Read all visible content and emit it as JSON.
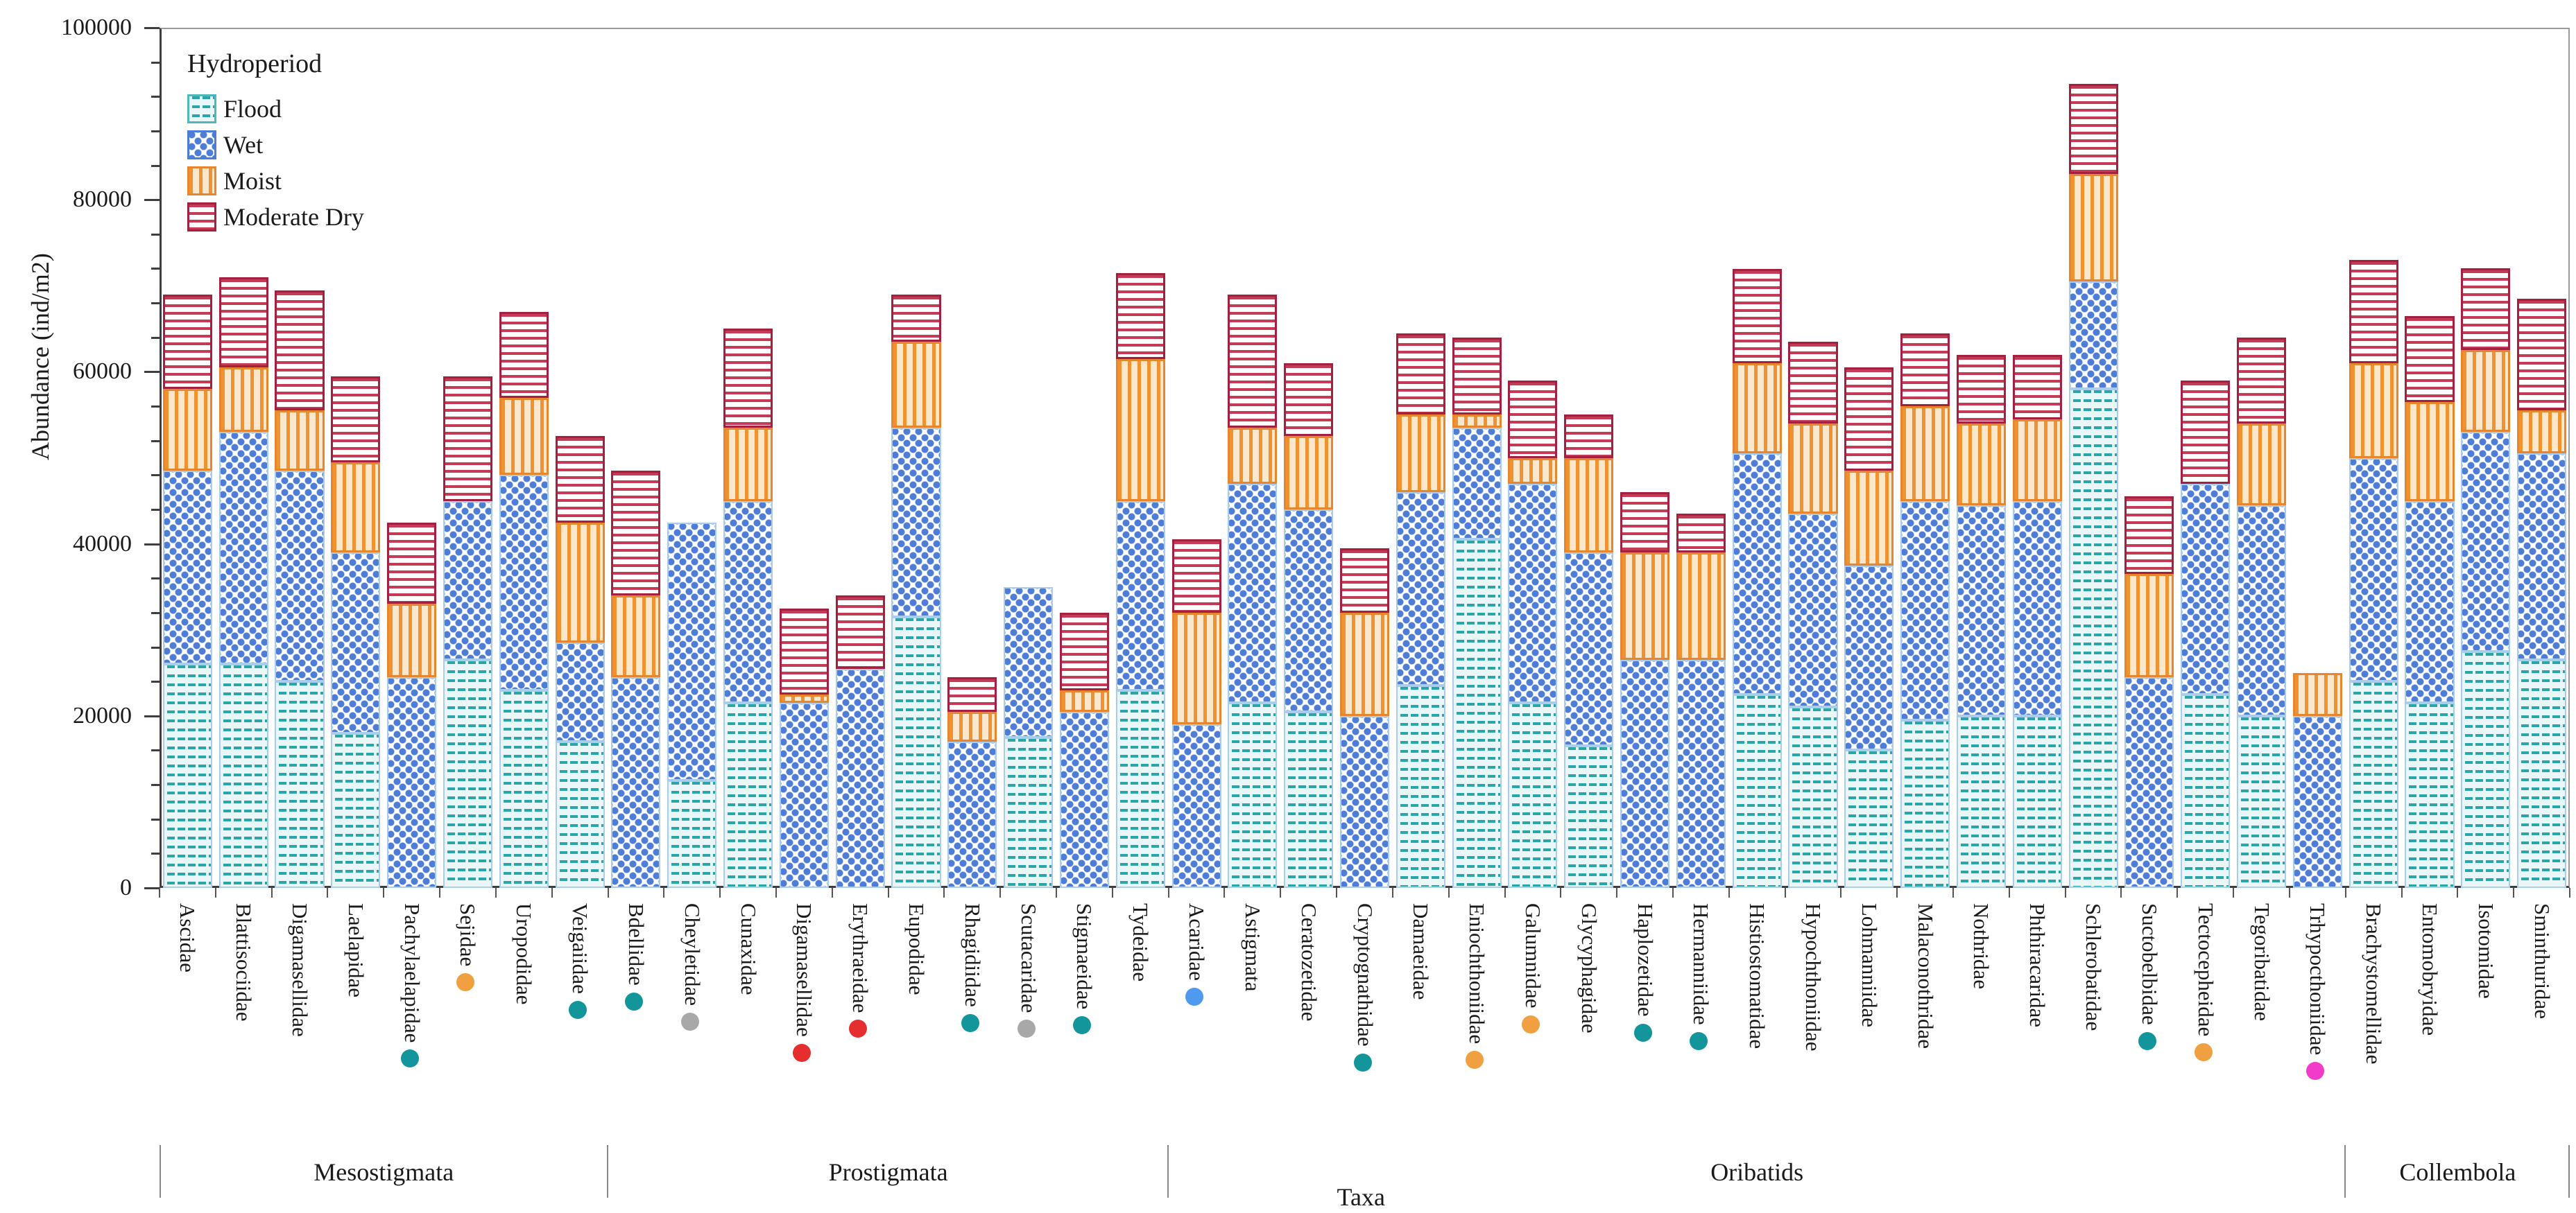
{
  "chart_data": {
    "type": "bar",
    "stacked": true,
    "ylabel": "Abundance (ind/m2)",
    "xlabel": "Taxa",
    "ylim": [
      0,
      100000
    ],
    "y_ticks": [
      "0",
      "20000",
      "40000",
      "60000",
      "80000",
      "100000"
    ],
    "y_major_step": 20000,
    "y_minor_step": 4000,
    "grid": false,
    "legend": {
      "title": "Hydroperiod",
      "position": "top-left-inside",
      "entries": [
        {
          "label": "Flood",
          "key": "flood",
          "color": "#2AA5A8",
          "pattern": "teal-horizontal-dashes"
        },
        {
          "label": "Wet",
          "key": "wet",
          "color": "#4E7DD8",
          "pattern": "blue-dots"
        },
        {
          "label": "Moist",
          "key": "moist",
          "color": "#F0922F",
          "pattern": "orange-vertical-stripes"
        },
        {
          "label": "Moderate Dry",
          "key": "dry",
          "color": "#C53B55",
          "pattern": "red-horizontal-stripes"
        }
      ]
    },
    "dot_colors": {
      "teal": "#12969B",
      "orange": "#F0A040",
      "gray": "#A8A8A8",
      "red": "#E62E2E",
      "blue": "#4E9AF0",
      "magenta": "#F23BC9"
    },
    "groups": [
      {
        "label": "Mesostigmata",
        "taxa_count": 8
      },
      {
        "label": "Prostigmata",
        "taxa_count": 10
      },
      {
        "label": "Oribatids",
        "taxa_count": 21
      },
      {
        "label": "Collembola",
        "taxa_count": 4
      }
    ],
    "series_order": [
      "flood",
      "wet",
      "moist",
      "dry"
    ],
    "bars": [
      {
        "taxon": "Ascidae",
        "group": "Mesostigmata",
        "dot": null,
        "flood": 26000,
        "wet": 22500,
        "moist": 9500,
        "dry": 11000
      },
      {
        "taxon": "Blattisociidae",
        "group": "Mesostigmata",
        "dot": null,
        "flood": 26000,
        "wet": 27000,
        "moist": 7500,
        "dry": 10500
      },
      {
        "taxon": "Digamasellidae",
        "group": "Mesostigmata",
        "dot": null,
        "flood": 24000,
        "wet": 24500,
        "moist": 7000,
        "dry": 14000
      },
      {
        "taxon": "Laelapidae",
        "group": "Mesostigmata",
        "dot": null,
        "flood": 18000,
        "wet": 21000,
        "moist": 10500,
        "dry": 10000
      },
      {
        "taxon": "Pachylaelapidae",
        "group": "Mesostigmata",
        "dot": "teal",
        "flood": 0,
        "wet": 24500,
        "moist": 8500,
        "dry": 9500
      },
      {
        "taxon": "Sejidae",
        "group": "Mesostigmata",
        "dot": "orange",
        "flood": 26500,
        "wet": 18500,
        "moist": 0,
        "dry": 14500
      },
      {
        "taxon": "Uropodidae",
        "group": "Mesostigmata",
        "dot": null,
        "flood": 23000,
        "wet": 25000,
        "moist": 9000,
        "dry": 10000
      },
      {
        "taxon": "Veigaiidae",
        "group": "Mesostigmata",
        "dot": "teal",
        "flood": 17000,
        "wet": 11500,
        "moist": 14000,
        "dry": 10000
      },
      {
        "taxon": "Bdellidae",
        "group": "Prostigmata",
        "dot": "teal",
        "flood": 0,
        "wet": 24500,
        "moist": 9500,
        "dry": 14500
      },
      {
        "taxon": "Cheyletidae",
        "group": "Prostigmata",
        "dot": "gray",
        "flood": 12500,
        "wet": 30000,
        "moist": 0,
        "dry": 0
      },
      {
        "taxon": "Cunaxidae",
        "group": "Prostigmata",
        "dot": null,
        "flood": 21500,
        "wet": 23500,
        "moist": 8500,
        "dry": 11500
      },
      {
        "taxon": "Digamasellidae",
        "group": "Prostigmata",
        "dot": "red",
        "flood": 0,
        "wet": 21500,
        "moist": 1000,
        "dry": 10000
      },
      {
        "taxon": "Erythraeidae",
        "group": "Prostigmata",
        "dot": "red",
        "flood": 0,
        "wet": 25500,
        "moist": 0,
        "dry": 8500
      },
      {
        "taxon": "Eupodidae",
        "group": "Prostigmata",
        "dot": null,
        "flood": 31500,
        "wet": 22000,
        "moist": 10000,
        "dry": 5500
      },
      {
        "taxon": "Rhagidiidae",
        "group": "Prostigmata",
        "dot": "teal",
        "flood": 0,
        "wet": 17000,
        "moist": 3500,
        "dry": 4000
      },
      {
        "taxon": "Scutacaridae",
        "group": "Prostigmata",
        "dot": "gray",
        "flood": 17500,
        "wet": 17500,
        "moist": 0,
        "dry": 0
      },
      {
        "taxon": "Stigmaeidae",
        "group": "Prostigmata",
        "dot": "teal",
        "flood": 0,
        "wet": 20500,
        "moist": 2500,
        "dry": 9000
      },
      {
        "taxon": "Tydeidae",
        "group": "Prostigmata",
        "dot": null,
        "flood": 23000,
        "wet": 22000,
        "moist": 16500,
        "dry": 10000
      },
      {
        "taxon": "Acaridae",
        "group": "Oribatids",
        "dot": "blue",
        "flood": 0,
        "wet": 19000,
        "moist": 13000,
        "dry": 8500
      },
      {
        "taxon": "Astigmata",
        "group": "Oribatids",
        "dot": null,
        "flood": 21500,
        "wet": 25500,
        "moist": 6500,
        "dry": 15500
      },
      {
        "taxon": "Ceratozetidae",
        "group": "Oribatids",
        "dot": null,
        "flood": 20500,
        "wet": 23500,
        "moist": 8500,
        "dry": 8500
      },
      {
        "taxon": "Cryptognathidae",
        "group": "Oribatids",
        "dot": "teal",
        "flood": 0,
        "wet": 20000,
        "moist": 12000,
        "dry": 7500
      },
      {
        "taxon": "Damaeidae",
        "group": "Oribatids",
        "dot": null,
        "flood": 23500,
        "wet": 22500,
        "moist": 9000,
        "dry": 9500
      },
      {
        "taxon": "Eniochthoniidae",
        "group": "Oribatids",
        "dot": "orange",
        "flood": 40500,
        "wet": 13000,
        "moist": 1500,
        "dry": 9000
      },
      {
        "taxon": "Galumnidae",
        "group": "Oribatids",
        "dot": "orange",
        "flood": 21500,
        "wet": 25500,
        "moist": 3000,
        "dry": 9000
      },
      {
        "taxon": "Glycyphagidae",
        "group": "Oribatids",
        "dot": null,
        "flood": 16500,
        "wet": 22500,
        "moist": 11000,
        "dry": 5000
      },
      {
        "taxon": "Haplozetidae",
        "group": "Oribatids",
        "dot": "teal",
        "flood": 0,
        "wet": 26500,
        "moist": 12500,
        "dry": 7000
      },
      {
        "taxon": "Hermanniidae",
        "group": "Oribatids",
        "dot": "teal",
        "flood": 0,
        "wet": 26500,
        "moist": 12500,
        "dry": 4500
      },
      {
        "taxon": "Histiostomatidae",
        "group": "Oribatids",
        "dot": null,
        "flood": 22500,
        "wet": 28000,
        "moist": 10500,
        "dry": 11000
      },
      {
        "taxon": "Hypochthoniidae",
        "group": "Oribatids",
        "dot": null,
        "flood": 21000,
        "wet": 22500,
        "moist": 10500,
        "dry": 9500
      },
      {
        "taxon": "Lohmanniidae",
        "group": "Oribatids",
        "dot": null,
        "flood": 16000,
        "wet": 21500,
        "moist": 11000,
        "dry": 12000
      },
      {
        "taxon": "Malaconothridae",
        "group": "Oribatids",
        "dot": null,
        "flood": 19500,
        "wet": 25500,
        "moist": 11000,
        "dry": 8500
      },
      {
        "taxon": "Nothridae",
        "group": "Oribatids",
        "dot": null,
        "flood": 20000,
        "wet": 24500,
        "moist": 9500,
        "dry": 8000
      },
      {
        "taxon": "Phthiracaridae",
        "group": "Oribatids",
        "dot": null,
        "flood": 20000,
        "wet": 25000,
        "moist": 9500,
        "dry": 7500
      },
      {
        "taxon": "Schlerobatidae",
        "group": "Oribatids",
        "dot": null,
        "flood": 58000,
        "wet": 12500,
        "moist": 12500,
        "dry": 10500
      },
      {
        "taxon": "Suctobelbidae",
        "group": "Oribatids",
        "dot": "teal",
        "flood": 0,
        "wet": 24500,
        "moist": 12000,
        "dry": 9000
      },
      {
        "taxon": "Tectocepheidae",
        "group": "Oribatids",
        "dot": "orange",
        "flood": 22500,
        "wet": 24500,
        "moist": 0,
        "dry": 12000
      },
      {
        "taxon": "Tegoribatidae",
        "group": "Oribatids",
        "dot": null,
        "flood": 20000,
        "wet": 24500,
        "moist": 9500,
        "dry": 10000
      },
      {
        "taxon": "Trhypocthoniidae",
        "group": "Oribatids",
        "dot": "magenta",
        "flood": 0,
        "wet": 20000,
        "moist": 5000,
        "dry": 0
      },
      {
        "taxon": "Brachystomellidae",
        "group": "Collembola",
        "dot": null,
        "flood": 24000,
        "wet": 26000,
        "moist": 11000,
        "dry": 12000
      },
      {
        "taxon": "Entomobryidae",
        "group": "Collembola",
        "dot": null,
        "flood": 21500,
        "wet": 23500,
        "moist": 11500,
        "dry": 10000
      },
      {
        "taxon": "Isotomidae",
        "group": "Collembola",
        "dot": null,
        "flood": 27500,
        "wet": 25500,
        "moist": 9500,
        "dry": 9500
      },
      {
        "taxon": "Sminthuridae",
        "group": "Collembola",
        "dot": null,
        "flood": 26500,
        "wet": 24000,
        "moist": 5000,
        "dry": 13000
      }
    ]
  }
}
